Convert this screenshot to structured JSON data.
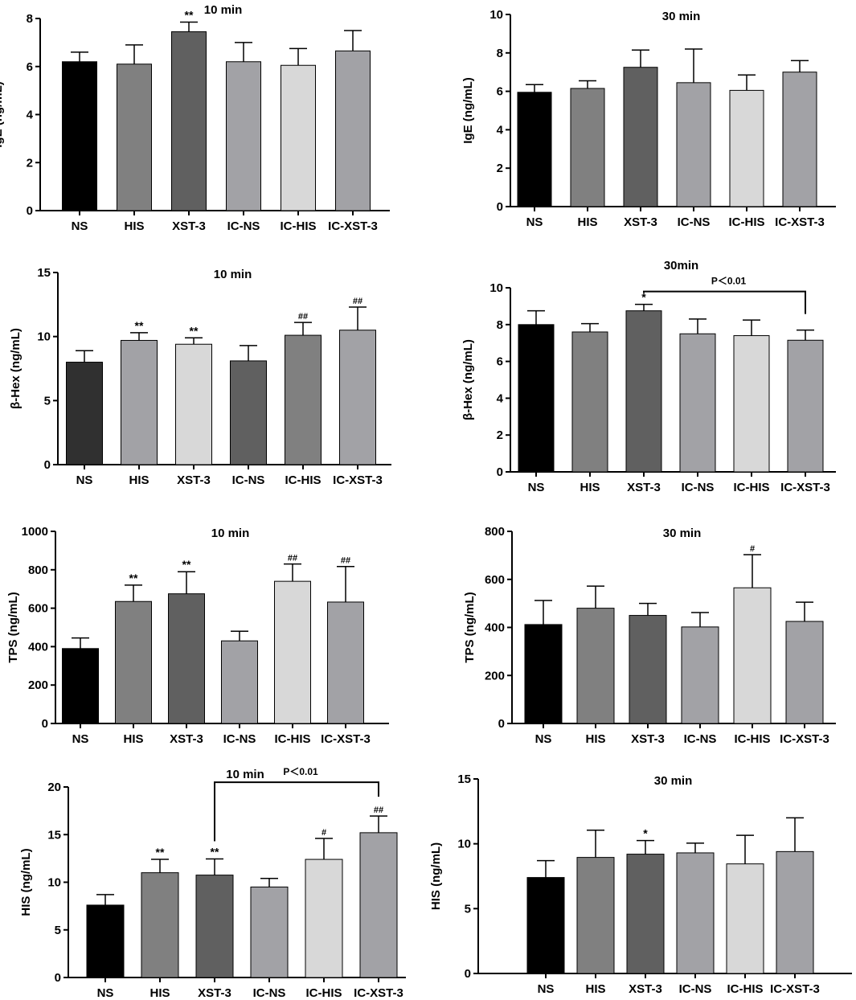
{
  "categories": [
    "NS",
    "HIS",
    "XST-3",
    "IC-NS",
    "IC-HIS",
    "IC-XST-3"
  ],
  "chart_data": [
    {
      "type": "bar",
      "title": "10 min",
      "ylabel": "IgE (ng/mL)",
      "ylim": [
        0,
        8
      ],
      "yticks": [
        0,
        2,
        4,
        6,
        8
      ],
      "categories": [
        "NS",
        "HIS",
        "XST-3",
        "IC-NS",
        "IC-HIS",
        "IC-XST-3"
      ],
      "values": [
        6.2,
        6.1,
        7.45,
        6.2,
        6.05,
        6.65
      ],
      "errors": [
        0.4,
        0.8,
        0.4,
        0.8,
        0.7,
        0.85
      ],
      "colors": [
        "#000000",
        "#808080",
        "#606060",
        "#a2a2a6",
        "#d8d8d8",
        "#a2a2a6"
      ],
      "annotations": [
        "",
        "",
        "**",
        "",
        "",
        ""
      ]
    },
    {
      "type": "bar",
      "title": "30 min",
      "ylabel": "IgE (ng/mL)",
      "ylim": [
        0,
        10
      ],
      "yticks": [
        0,
        2,
        4,
        6,
        8,
        10
      ],
      "categories": [
        "NS",
        "HIS",
        "XST-3",
        "IC-NS",
        "IC-HIS",
        "IC-XST-3"
      ],
      "values": [
        5.95,
        6.15,
        7.25,
        6.45,
        6.05,
        7.0
      ],
      "errors": [
        0.4,
        0.4,
        0.9,
        1.75,
        0.8,
        0.6
      ],
      "colors": [
        "#000000",
        "#808080",
        "#606060",
        "#a2a2a6",
        "#d8d8d8",
        "#a2a2a6"
      ],
      "annotations": [
        "",
        "",
        "",
        "",
        "",
        ""
      ]
    },
    {
      "type": "bar",
      "title": "10 min",
      "ylabel": "β-Hex (ng/mL)",
      "ylim": [
        0,
        15
      ],
      "yticks": [
        0,
        5,
        10,
        15
      ],
      "categories": [
        "NS",
        "HIS",
        "XST-3",
        "IC-NS",
        "IC-HIS",
        "IC-XST-3"
      ],
      "values": [
        8.0,
        9.7,
        9.4,
        8.1,
        10.1,
        10.5
      ],
      "errors": [
        0.9,
        0.6,
        0.5,
        1.2,
        1.0,
        1.8
      ],
      "colors": [
        "#303030",
        "#a2a2a6",
        "#d8d8d8",
        "#606060",
        "#808080",
        "#a2a2a6"
      ],
      "annotations": [
        "",
        "**",
        "**",
        "",
        "##",
        "##"
      ]
    },
    {
      "type": "bar",
      "title": "30min",
      "ylabel": "β-Hex (ng/mL)",
      "ylim": [
        0,
        10
      ],
      "yticks": [
        0,
        2,
        4,
        6,
        8,
        10
      ],
      "categories": [
        "NS",
        "HIS",
        "XST-3",
        "IC-NS",
        "IC-HIS",
        "IC-XST-3"
      ],
      "values": [
        8.0,
        7.6,
        8.75,
        7.5,
        7.4,
        7.15
      ],
      "errors": [
        0.75,
        0.45,
        0.35,
        0.8,
        0.85,
        0.55
      ],
      "colors": [
        "#000000",
        "#808080",
        "#606060",
        "#a2a2a6",
        "#d8d8d8",
        "#a2a2a6"
      ],
      "annotations": [
        "",
        "",
        "*",
        "",
        "",
        ""
      ],
      "comparison": {
        "from": 2,
        "to": 5,
        "label": "P＜0.01"
      }
    },
    {
      "type": "bar",
      "title": "10 min",
      "ylabel": "TPS (ng/mL)",
      "ylim": [
        0,
        1000
      ],
      "yticks": [
        0,
        200,
        400,
        600,
        800,
        1000
      ],
      "categories": [
        "NS",
        "HIS",
        "XST-3",
        "IC-NS",
        "IC-HIS",
        "IC-XST-3"
      ],
      "values": [
        390,
        635,
        675,
        430,
        740,
        632
      ],
      "errors": [
        55,
        85,
        115,
        50,
        90,
        185
      ],
      "colors": [
        "#000000",
        "#808080",
        "#606060",
        "#a2a2a6",
        "#d8d8d8",
        "#a2a2a6"
      ],
      "annotations": [
        "",
        "**",
        "**",
        "",
        "##",
        "##"
      ]
    },
    {
      "type": "bar",
      "title": "30 min",
      "ylabel": "TPS (ng/mL)",
      "ylim": [
        0,
        800
      ],
      "yticks": [
        0,
        200,
        400,
        600,
        800
      ],
      "categories": [
        "NS",
        "HIS",
        "XST-3",
        "IC-NS",
        "IC-HIS",
        "IC-XST-3"
      ],
      "values": [
        412,
        480,
        450,
        402,
        565,
        425
      ],
      "errors": [
        100,
        92,
        50,
        60,
        138,
        80
      ],
      "colors": [
        "#000000",
        "#808080",
        "#606060",
        "#a2a2a6",
        "#d8d8d8",
        "#a2a2a6"
      ],
      "annotations": [
        "",
        "",
        "",
        "",
        "#",
        ""
      ]
    },
    {
      "type": "bar",
      "title": "10 min",
      "ylabel": "HIS (ng/mL)",
      "ylim": [
        0,
        20
      ],
      "yticks": [
        0,
        5,
        10,
        15,
        20
      ],
      "categories": [
        "NS",
        "HIS",
        "XST-3",
        "IC-NS",
        "IC-HIS",
        "IC-XST-3"
      ],
      "values": [
        7.6,
        11.0,
        10.75,
        9.5,
        12.4,
        15.2
      ],
      "errors": [
        1.1,
        1.4,
        1.7,
        0.9,
        2.2,
        1.75
      ],
      "colors": [
        "#000000",
        "#808080",
        "#606060",
        "#a2a2a6",
        "#d8d8d8",
        "#a2a2a6"
      ],
      "annotations": [
        "",
        "**",
        "**",
        "",
        "#",
        "##"
      ],
      "comparison": {
        "from": 2,
        "to": 5,
        "label": "P＜0.01"
      }
    },
    {
      "type": "bar",
      "title": "30 min",
      "ylabel": "HIS (ng/mL)",
      "ylim": [
        0,
        15
      ],
      "yticks": [
        0,
        5,
        10,
        15
      ],
      "categories": [
        "NS",
        "HIS",
        "XST-3",
        "IC-NS",
        "IC-HIS",
        "IC-XST-3"
      ],
      "values": [
        7.4,
        8.95,
        9.2,
        9.3,
        8.45,
        9.4
      ],
      "errors": [
        1.3,
        2.1,
        1.05,
        0.75,
        2.2,
        2.6
      ],
      "colors": [
        "#000000",
        "#808080",
        "#606060",
        "#a2a2a6",
        "#d8d8d8",
        "#a2a2a6"
      ],
      "annotations": [
        "",
        "",
        "*",
        "",
        "",
        ""
      ]
    }
  ]
}
